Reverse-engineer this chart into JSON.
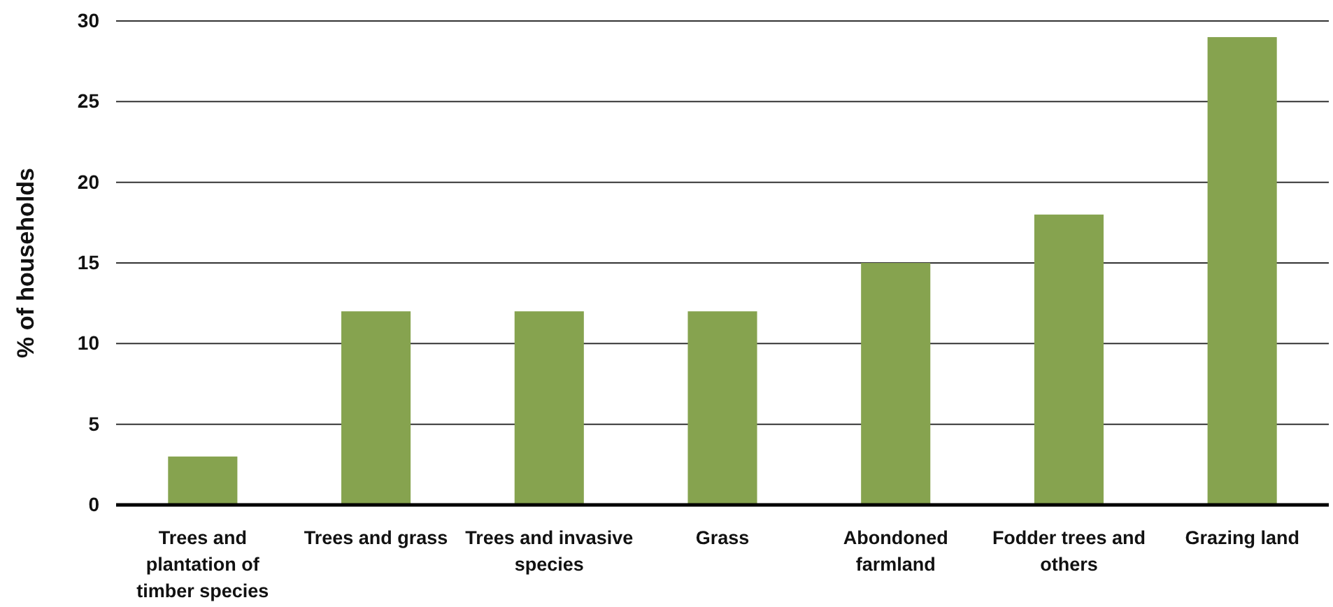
{
  "chart_data": {
    "type": "bar",
    "ylabel": "% of households",
    "categories": [
      "Trees and plantation of timber species",
      "Trees and grass",
      "Trees and invasive species",
      "Grass",
      "Abondoned farmland",
      "Fodder trees and others",
      "Grazing land"
    ],
    "values": [
      3,
      12,
      12,
      12,
      15,
      18,
      29
    ],
    "color": "#86a34f",
    "ylim": [
      0,
      30
    ],
    "yticks": [
      0,
      5,
      10,
      15,
      20,
      25,
      30
    ],
    "grid": "y"
  }
}
